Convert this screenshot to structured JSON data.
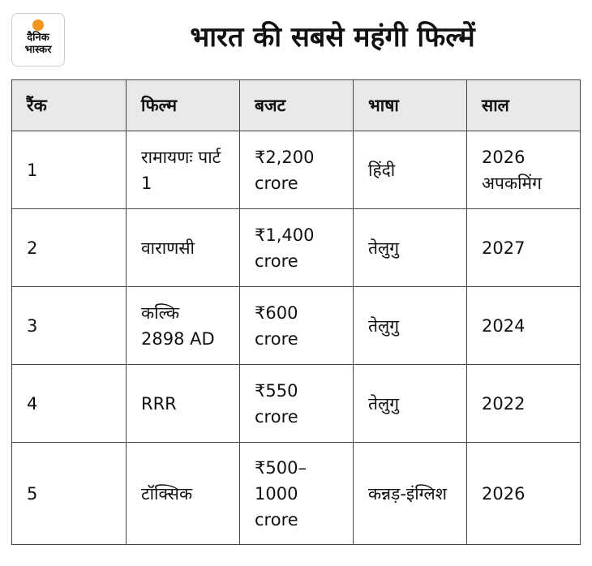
{
  "header": {
    "logo": {
      "line1": "दैनिक",
      "line2": "भास्कर"
    },
    "title": "भारत की सबसे महंगी फिल्में"
  },
  "table": {
    "columns": [
      "रैंक",
      "फिल्म",
      "बजट",
      "भाषा",
      "साल"
    ],
    "rows": [
      [
        "1",
        "रामायणः पार्ट 1",
        "₹2,200 crore",
        "हिंदी",
        "2026 अपकमिंग"
      ],
      [
        "2",
        "वाराणसी",
        "₹1,400 crore",
        "तेलुगु",
        "2027"
      ],
      [
        "3",
        "कल्कि 2898 AD",
        "₹600 crore",
        "तेलुगु",
        "2024"
      ],
      [
        "4",
        "RRR",
        "₹550 crore",
        "तेलुगु",
        "2022"
      ],
      [
        "5",
        "टॉक्सिक",
        "₹500–1000 crore",
        "कन्नड़-इंग्लिश",
        "2026"
      ]
    ]
  }
}
